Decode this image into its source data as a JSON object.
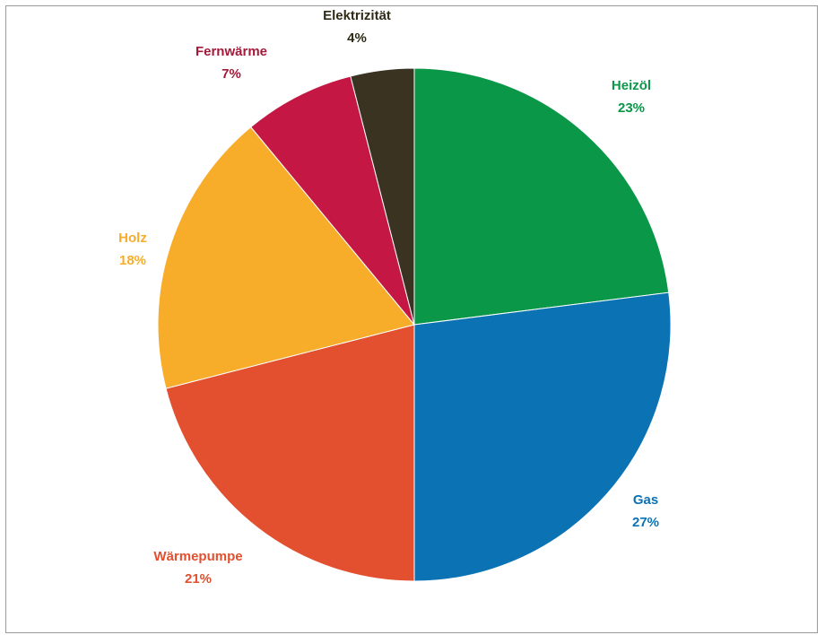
{
  "chart_data": {
    "type": "pie",
    "title": "",
    "slices": [
      {
        "label": "Heizöl",
        "value": 23,
        "value_label": "23%",
        "color": "#0a9748"
      },
      {
        "label": "Gas",
        "value": 27,
        "value_label": "27%",
        "color": "#0b72b4"
      },
      {
        "label": "Wärmepumpe",
        "value": 21,
        "value_label": "21%",
        "color": "#e2502f"
      },
      {
        "label": "Holz",
        "value": 18,
        "value_label": "18%",
        "color": "#f8ad2a"
      },
      {
        "label": "Fernwärme",
        "value": 7,
        "value_label": "7%",
        "color": "#c41744"
      },
      {
        "label": "Elektrizität",
        "value": 4,
        "value_label": "4%",
        "color": "#3a3321"
      }
    ],
    "label_colors": [
      "#0a9748",
      "#0b72b4",
      "#e2502f",
      "#f8ad2a",
      "#a41a3a",
      "#2e2a16"
    ],
    "start_angle": "12 o'clock",
    "direction": "clockwise",
    "legend": "none"
  }
}
